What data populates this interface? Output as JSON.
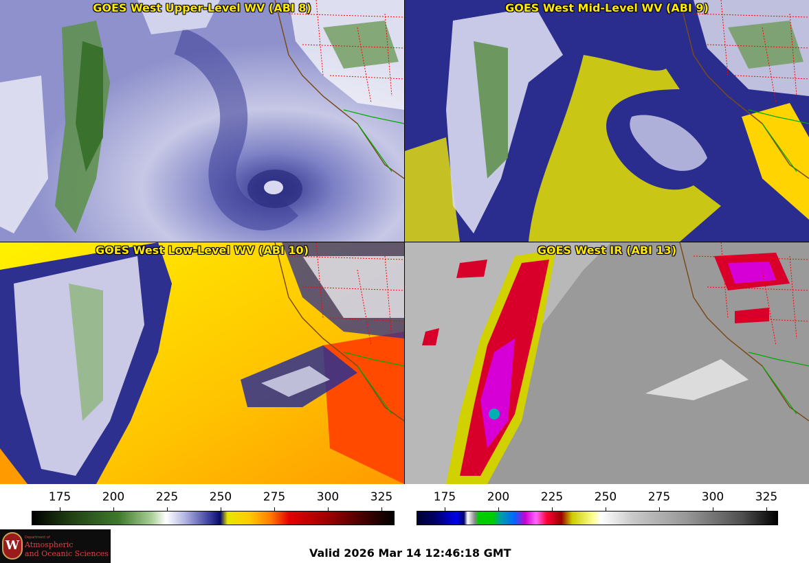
{
  "panels": [
    {
      "title": "GOES West Upper-Level WV (ABI 8)",
      "palette": "wv-upper"
    },
    {
      "title": "GOES West Mid-Level WV (ABI 9)",
      "palette": "wv-mid"
    },
    {
      "title": "GOES West Low-Level WV (ABI 10)",
      "palette": "wv-low"
    },
    {
      "title": "GOES West IR (ABI 13)",
      "palette": "ir"
    }
  ],
  "colorbars": [
    {
      "name": "water-vapor-temperature-scale",
      "ticks": [
        "175",
        "200",
        "225",
        "250",
        "275",
        "300",
        "325"
      ]
    },
    {
      "name": "infrared-temperature-scale",
      "ticks": [
        "175",
        "200",
        "225",
        "250",
        "275",
        "300",
        "325"
      ]
    }
  ],
  "logo": {
    "dept": "Department of",
    "line1": "Atmospheric",
    "line2": "and Oceanic Sciences",
    "seal_letter": "W"
  },
  "valid_time": "Valid 2026 Mar 14 12:46:18 GMT",
  "colors": {
    "title_text": "#ffea00",
    "coastline": "#7a4a1a",
    "state_borders": "#ff0000",
    "mexico_borders": "#00aa00"
  }
}
